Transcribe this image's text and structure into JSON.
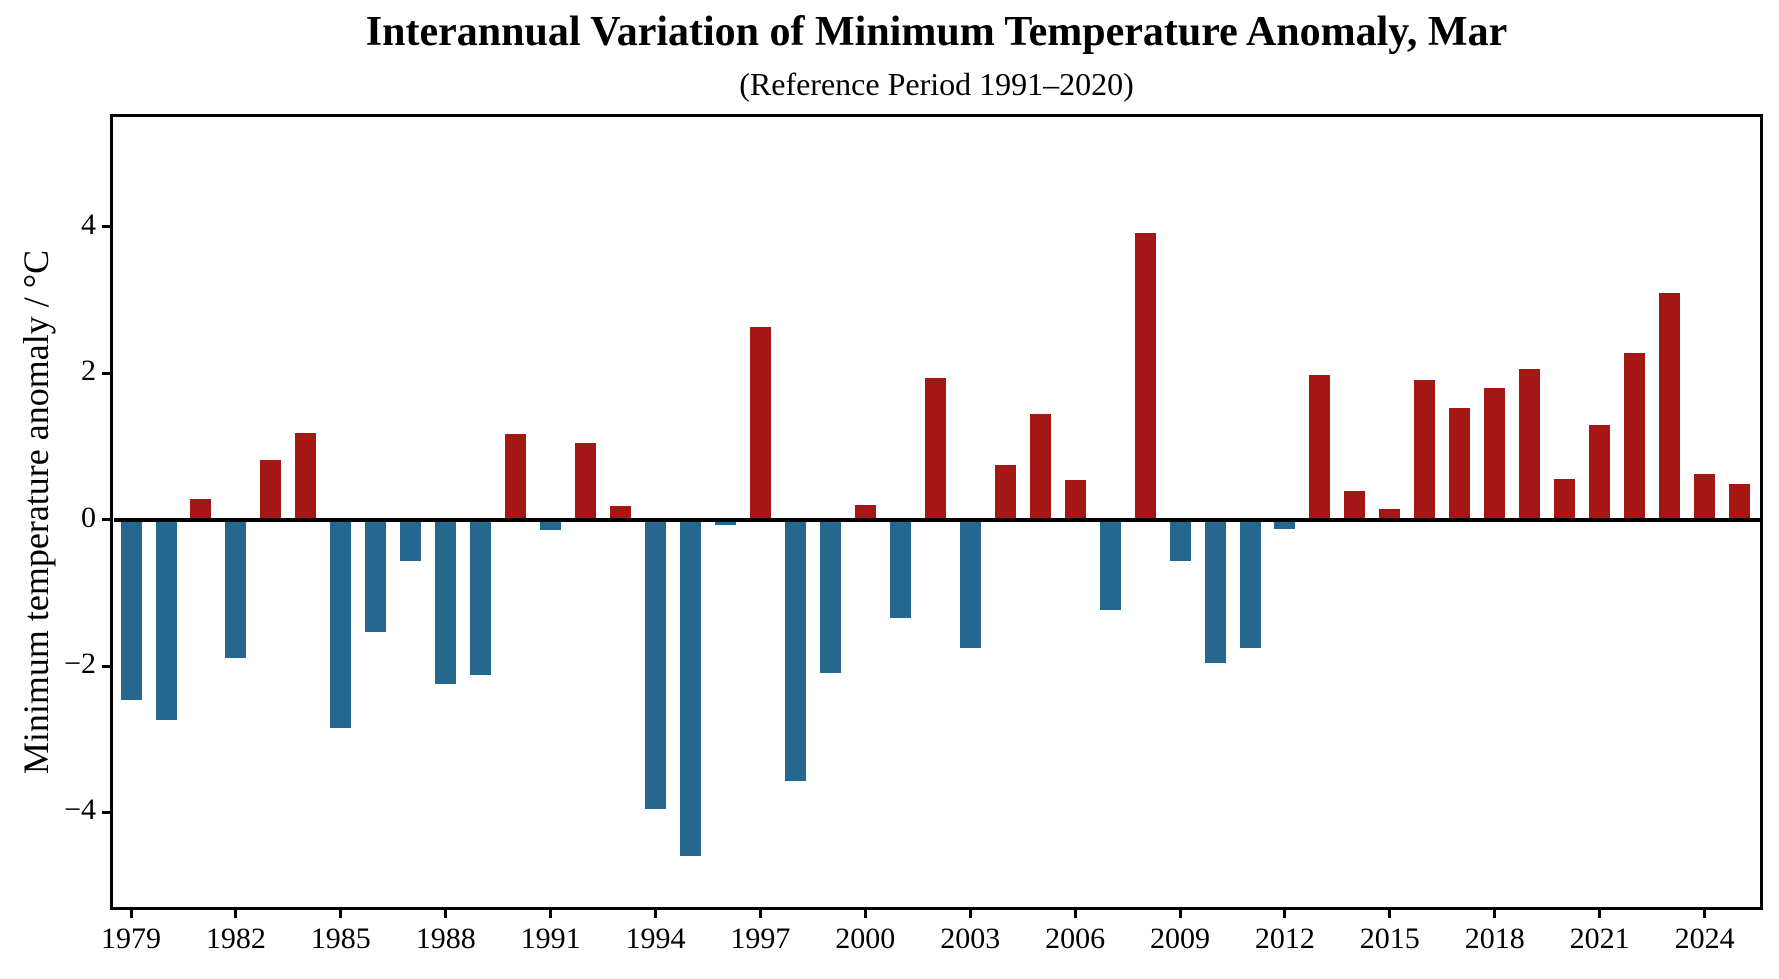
{
  "title": "Interannual Variation of Minimum Temperature Anomaly, Mar",
  "subtitle": "(Reference Period 1991–2020)",
  "chart_data": {
    "type": "bar",
    "title": "Interannual Variation of Minimum Temperature Anomaly, Mar",
    "subtitle": "(Reference Period 1991–2020)",
    "xlabel": "",
    "ylabel": "Minimum temperature anomaly / °C",
    "x": [
      1979,
      1980,
      1981,
      1982,
      1983,
      1984,
      1985,
      1986,
      1987,
      1988,
      1989,
      1990,
      1991,
      1992,
      1993,
      1994,
      1995,
      1996,
      1997,
      1998,
      1999,
      2000,
      2001,
      2002,
      2003,
      2004,
      2005,
      2006,
      2007,
      2008,
      2009,
      2010,
      2011,
      2012,
      2013,
      2014,
      2015,
      2016,
      2017,
      2018,
      2019,
      2020,
      2021,
      2022,
      2023,
      2024,
      2025
    ],
    "values": [
      -2.47,
      -2.74,
      0.28,
      -1.89,
      0.82,
      1.19,
      -2.85,
      -1.54,
      -0.56,
      -2.25,
      -2.13,
      1.17,
      -0.14,
      1.05,
      0.18,
      -3.96,
      -4.6,
      -0.08,
      2.63,
      -3.57,
      -2.09,
      0.2,
      -1.34,
      1.93,
      -1.75,
      0.75,
      1.44,
      0.54,
      -1.23,
      3.92,
      -0.57,
      -1.96,
      -1.75,
      -0.13,
      1.98,
      0.39,
      0.14,
      1.91,
      1.52,
      1.8,
      2.06,
      0.55,
      1.29,
      2.28,
      3.09,
      0.62,
      0.48
    ],
    "x_ticks": [
      1979,
      1982,
      1985,
      1988,
      1991,
      1994,
      1997,
      2000,
      2003,
      2006,
      2009,
      2012,
      2015,
      2018,
      2021,
      2024
    ],
    "x_tick_labels": [
      "1979",
      "1982",
      "1985",
      "1988",
      "1991",
      "1994",
      "1997",
      "2000",
      "2003",
      "2006",
      "2009",
      "2012",
      "2015",
      "2018",
      "2021",
      "2024"
    ],
    "y_ticks": [
      -4,
      -2,
      0,
      2,
      4
    ],
    "y_tick_labels": [
      "−4",
      "−2",
      "0",
      "2",
      "4"
    ],
    "xlim": [
      1978.5,
      2025.6
    ],
    "ylim": [
      -5.3,
      5.5
    ],
    "bar_width_years": 0.6,
    "positive_color": "#a51715",
    "negative_color": "#25688f",
    "axis_color": "#000000",
    "background_color": "#ffffff",
    "grid": false,
    "legend": null,
    "zero_line": true
  }
}
